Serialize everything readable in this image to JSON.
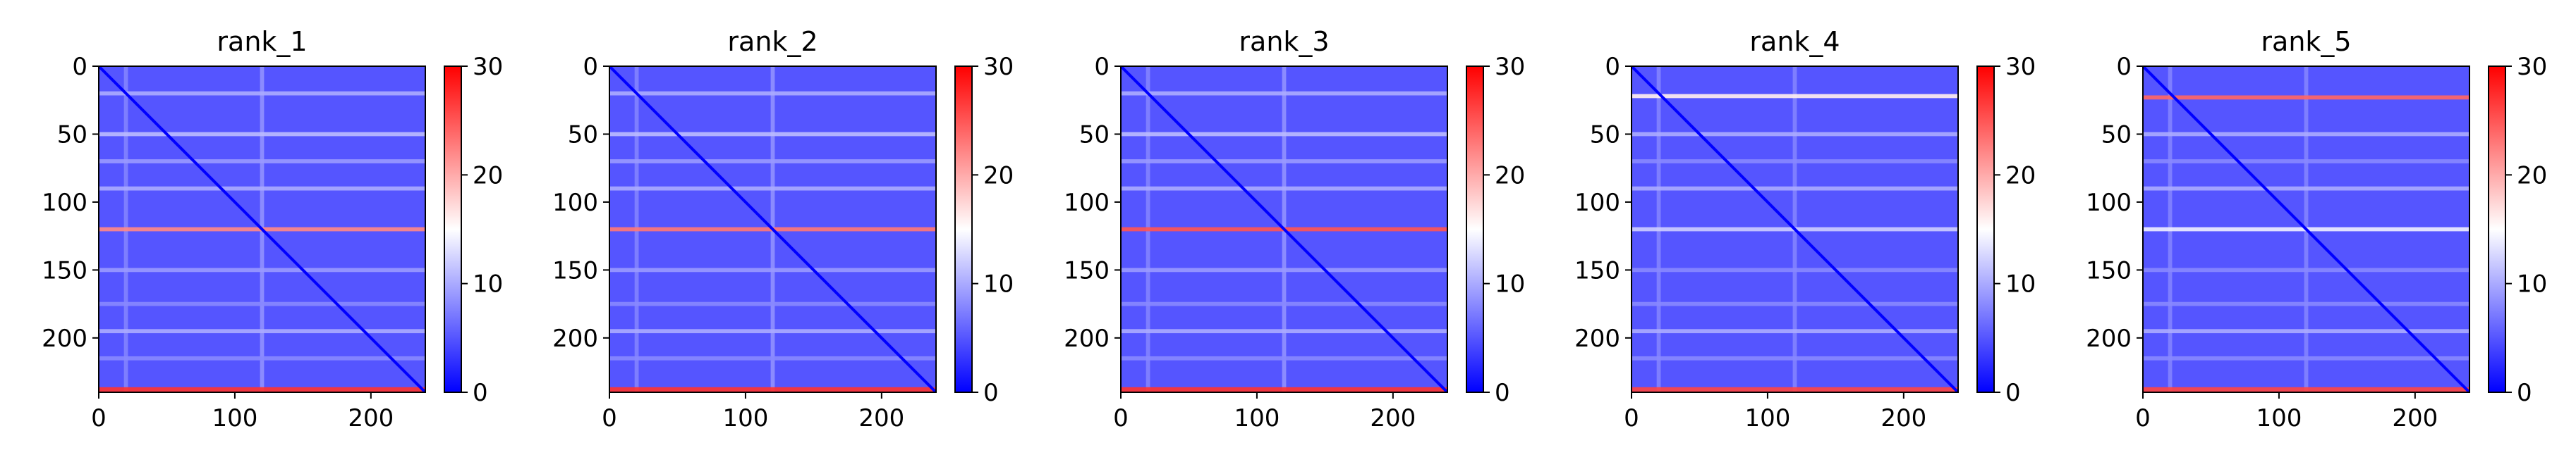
{
  "chart_data": [
    {
      "type": "heatmap",
      "title": "rank_1",
      "matrix_size": 240,
      "xlim": [
        0,
        240
      ],
      "ylim": [
        240,
        0
      ],
      "xticks": [
        0,
        100,
        200
      ],
      "yticks": [
        0,
        50,
        100,
        150,
        200
      ],
      "colorbar": {
        "min": 0,
        "max": 30,
        "ticks": [
          0,
          10,
          20,
          30
        ],
        "colormap": "bwr"
      },
      "background_value": 5,
      "diagonal_value": 0,
      "horizontal_bands": [
        {
          "row": 20,
          "value": 10
        },
        {
          "row": 50,
          "value": 11
        },
        {
          "row": 70,
          "value": 9
        },
        {
          "row": 90,
          "value": 10
        },
        {
          "row": 120,
          "value": 22
        },
        {
          "row": 150,
          "value": 9
        },
        {
          "row": 175,
          "value": 8
        },
        {
          "row": 195,
          "value": 10
        },
        {
          "row": 215,
          "value": 8
        },
        {
          "row": 238,
          "value": 27
        }
      ],
      "vertical_bands": [
        {
          "col": 20,
          "value": 8
        },
        {
          "col": 120,
          "value": 9
        }
      ]
    },
    {
      "type": "heatmap",
      "title": "rank_2",
      "matrix_size": 240,
      "xlim": [
        0,
        240
      ],
      "ylim": [
        240,
        0
      ],
      "xticks": [
        0,
        100,
        200
      ],
      "yticks": [
        0,
        50,
        100,
        150,
        200
      ],
      "colorbar": {
        "min": 0,
        "max": 30,
        "ticks": [
          0,
          10,
          20,
          30
        ],
        "colormap": "bwr"
      },
      "background_value": 5,
      "diagonal_value": 0,
      "horizontal_bands": [
        {
          "row": 20,
          "value": 10
        },
        {
          "row": 50,
          "value": 11
        },
        {
          "row": 70,
          "value": 9
        },
        {
          "row": 90,
          "value": 10
        },
        {
          "row": 120,
          "value": 23
        },
        {
          "row": 150,
          "value": 9
        },
        {
          "row": 175,
          "value": 8
        },
        {
          "row": 195,
          "value": 10
        },
        {
          "row": 215,
          "value": 8
        },
        {
          "row": 238,
          "value": 27
        }
      ],
      "vertical_bands": [
        {
          "col": 20,
          "value": 8
        },
        {
          "col": 120,
          "value": 9
        }
      ]
    },
    {
      "type": "heatmap",
      "title": "rank_3",
      "matrix_size": 240,
      "xlim": [
        0,
        240
      ],
      "ylim": [
        240,
        0
      ],
      "xticks": [
        0,
        100,
        200
      ],
      "yticks": [
        0,
        50,
        100,
        150,
        200
      ],
      "colorbar": {
        "min": 0,
        "max": 30,
        "ticks": [
          0,
          10,
          20,
          30
        ],
        "colormap": "bwr"
      },
      "background_value": 5,
      "diagonal_value": 0,
      "horizontal_bands": [
        {
          "row": 20,
          "value": 10
        },
        {
          "row": 50,
          "value": 11
        },
        {
          "row": 70,
          "value": 9
        },
        {
          "row": 90,
          "value": 10
        },
        {
          "row": 120,
          "value": 25
        },
        {
          "row": 150,
          "value": 9
        },
        {
          "row": 175,
          "value": 8
        },
        {
          "row": 195,
          "value": 10
        },
        {
          "row": 215,
          "value": 8
        },
        {
          "row": 238,
          "value": 27
        }
      ],
      "vertical_bands": [
        {
          "col": 20,
          "value": 8
        },
        {
          "col": 120,
          "value": 9
        }
      ]
    },
    {
      "type": "heatmap",
      "title": "rank_4",
      "matrix_size": 240,
      "xlim": [
        0,
        240
      ],
      "ylim": [
        240,
        0
      ],
      "xticks": [
        0,
        100,
        200
      ],
      "yticks": [
        0,
        50,
        100,
        150,
        200
      ],
      "colorbar": {
        "min": 0,
        "max": 30,
        "ticks": [
          0,
          10,
          20,
          30
        ],
        "colormap": "bwr"
      },
      "background_value": 5,
      "diagonal_value": 0,
      "horizontal_bands": [
        {
          "row": 22,
          "value": 16
        },
        {
          "row": 50,
          "value": 10
        },
        {
          "row": 70,
          "value": 8
        },
        {
          "row": 90,
          "value": 10
        },
        {
          "row": 120,
          "value": 12
        },
        {
          "row": 150,
          "value": 8
        },
        {
          "row": 175,
          "value": 8
        },
        {
          "row": 195,
          "value": 10
        },
        {
          "row": 215,
          "value": 8
        },
        {
          "row": 238,
          "value": 26
        }
      ],
      "vertical_bands": [
        {
          "col": 20,
          "value": 8
        },
        {
          "col": 120,
          "value": 8
        }
      ]
    },
    {
      "type": "heatmap",
      "title": "rank_5",
      "matrix_size": 240,
      "xlim": [
        0,
        240
      ],
      "ylim": [
        240,
        0
      ],
      "xticks": [
        0,
        100,
        200
      ],
      "yticks": [
        0,
        50,
        100,
        150,
        200
      ],
      "colorbar": {
        "min": 0,
        "max": 30,
        "ticks": [
          0,
          10,
          20,
          30
        ],
        "colormap": "bwr"
      },
      "background_value": 5,
      "diagonal_value": 0,
      "horizontal_bands": [
        {
          "row": 23,
          "value": 24
        },
        {
          "row": 50,
          "value": 10
        },
        {
          "row": 70,
          "value": 8
        },
        {
          "row": 90,
          "value": 10
        },
        {
          "row": 120,
          "value": 14
        },
        {
          "row": 150,
          "value": 8
        },
        {
          "row": 175,
          "value": 8
        },
        {
          "row": 195,
          "value": 10
        },
        {
          "row": 215,
          "value": 8
        },
        {
          "row": 238,
          "value": 26
        }
      ],
      "vertical_bands": [
        {
          "col": 20,
          "value": 8
        },
        {
          "col": 120,
          "value": 8
        }
      ]
    }
  ]
}
